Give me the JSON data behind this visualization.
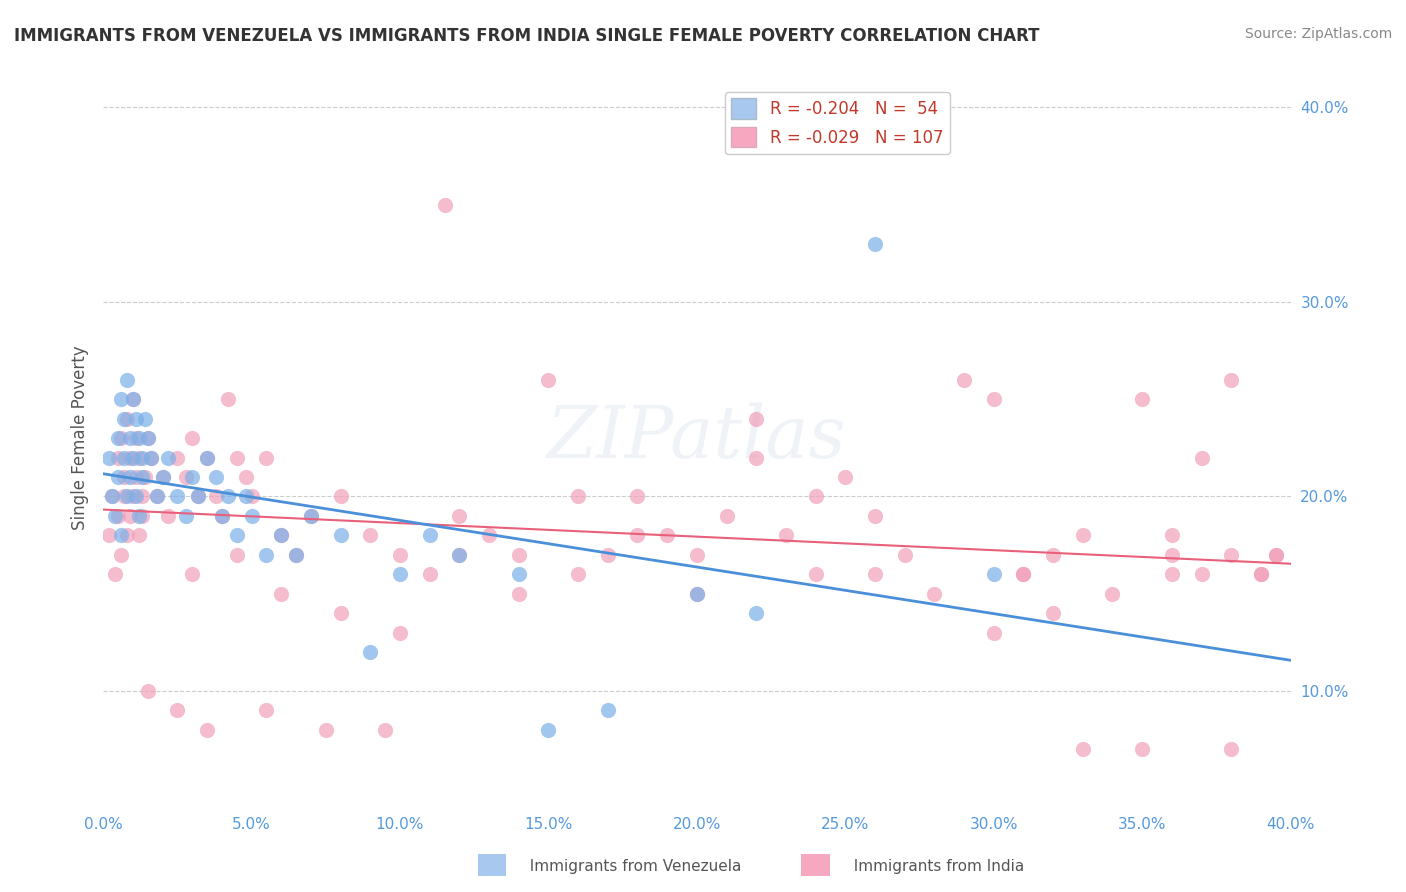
{
  "title": "IMMIGRANTS FROM VENEZUELA VS IMMIGRANTS FROM INDIA SINGLE FEMALE POVERTY CORRELATION CHART",
  "source": "Source: ZipAtlas.com",
  "ylabel": "Single Female Poverty",
  "xlabel": "",
  "xlim": [
    0.0,
    0.4
  ],
  "ylim": [
    0.04,
    0.42
  ],
  "xticks": [
    0.0,
    0.05,
    0.1,
    0.15,
    0.2,
    0.25,
    0.3,
    0.35,
    0.4
  ],
  "yticks": [
    0.1,
    0.2,
    0.3,
    0.4
  ],
  "legend1_label": "R = -0.204   N =  54",
  "legend2_label": "R = -0.029   N = 107",
  "legend1_color": "#a8c8f0",
  "legend2_color": "#f5a8c0",
  "blue_dot_color": "#7ab0e8",
  "pink_dot_color": "#f0a0b8",
  "blue_line_color": "#4a90d9",
  "pink_line_color": "#e8607a",
  "watermark": "ZIPatlas",
  "venezuela_x": [
    0.002,
    0.003,
    0.004,
    0.005,
    0.005,
    0.006,
    0.006,
    0.007,
    0.007,
    0.008,
    0.008,
    0.009,
    0.009,
    0.01,
    0.01,
    0.011,
    0.011,
    0.012,
    0.012,
    0.013,
    0.013,
    0.014,
    0.015,
    0.016,
    0.018,
    0.02,
    0.022,
    0.025,
    0.028,
    0.03,
    0.032,
    0.035,
    0.038,
    0.04,
    0.042,
    0.045,
    0.048,
    0.05,
    0.055,
    0.06,
    0.065,
    0.07,
    0.08,
    0.09,
    0.1,
    0.11,
    0.12,
    0.14,
    0.15,
    0.17,
    0.2,
    0.22,
    0.26,
    0.3
  ],
  "venezuela_y": [
    0.22,
    0.2,
    0.19,
    0.23,
    0.21,
    0.25,
    0.18,
    0.24,
    0.22,
    0.26,
    0.2,
    0.23,
    0.21,
    0.25,
    0.22,
    0.24,
    0.2,
    0.23,
    0.19,
    0.22,
    0.21,
    0.24,
    0.23,
    0.22,
    0.2,
    0.21,
    0.22,
    0.2,
    0.19,
    0.21,
    0.2,
    0.22,
    0.21,
    0.19,
    0.2,
    0.18,
    0.2,
    0.19,
    0.17,
    0.18,
    0.17,
    0.19,
    0.18,
    0.12,
    0.16,
    0.18,
    0.17,
    0.16,
    0.08,
    0.09,
    0.15,
    0.14,
    0.33,
    0.16
  ],
  "india_x": [
    0.002,
    0.003,
    0.004,
    0.005,
    0.005,
    0.006,
    0.006,
    0.007,
    0.007,
    0.008,
    0.008,
    0.009,
    0.009,
    0.01,
    0.01,
    0.011,
    0.011,
    0.012,
    0.012,
    0.013,
    0.013,
    0.014,
    0.015,
    0.016,
    0.018,
    0.02,
    0.022,
    0.025,
    0.028,
    0.03,
    0.032,
    0.035,
    0.038,
    0.04,
    0.042,
    0.045,
    0.048,
    0.05,
    0.055,
    0.06,
    0.065,
    0.07,
    0.08,
    0.09,
    0.1,
    0.11,
    0.12,
    0.13,
    0.14,
    0.15,
    0.16,
    0.17,
    0.18,
    0.19,
    0.2,
    0.21,
    0.22,
    0.23,
    0.24,
    0.25,
    0.26,
    0.27,
    0.29,
    0.3,
    0.31,
    0.32,
    0.33,
    0.35,
    0.36,
    0.37,
    0.38,
    0.39,
    0.31,
    0.33,
    0.35,
    0.36,
    0.37,
    0.38,
    0.39,
    0.395,
    0.03,
    0.045,
    0.06,
    0.08,
    0.1,
    0.12,
    0.14,
    0.16,
    0.18,
    0.2,
    0.22,
    0.24,
    0.26,
    0.28,
    0.3,
    0.32,
    0.34,
    0.36,
    0.38,
    0.395,
    0.015,
    0.025,
    0.035,
    0.055,
    0.075,
    0.095,
    0.115
  ],
  "india_y": [
    0.18,
    0.2,
    0.16,
    0.22,
    0.19,
    0.23,
    0.17,
    0.21,
    0.2,
    0.24,
    0.18,
    0.22,
    0.19,
    0.25,
    0.2,
    0.23,
    0.21,
    0.22,
    0.18,
    0.2,
    0.19,
    0.21,
    0.23,
    0.22,
    0.2,
    0.21,
    0.19,
    0.22,
    0.21,
    0.23,
    0.2,
    0.22,
    0.2,
    0.19,
    0.25,
    0.22,
    0.21,
    0.2,
    0.22,
    0.18,
    0.17,
    0.19,
    0.2,
    0.18,
    0.17,
    0.16,
    0.19,
    0.18,
    0.17,
    0.26,
    0.2,
    0.17,
    0.2,
    0.18,
    0.17,
    0.19,
    0.24,
    0.18,
    0.2,
    0.21,
    0.19,
    0.17,
    0.26,
    0.25,
    0.16,
    0.17,
    0.07,
    0.25,
    0.18,
    0.22,
    0.17,
    0.16,
    0.16,
    0.18,
    0.07,
    0.17,
    0.16,
    0.26,
    0.16,
    0.17,
    0.16,
    0.17,
    0.15,
    0.14,
    0.13,
    0.17,
    0.15,
    0.16,
    0.18,
    0.15,
    0.22,
    0.16,
    0.16,
    0.15,
    0.13,
    0.14,
    0.15,
    0.16,
    0.07,
    0.17,
    0.1,
    0.09,
    0.08,
    0.09,
    0.08,
    0.08,
    0.35
  ]
}
